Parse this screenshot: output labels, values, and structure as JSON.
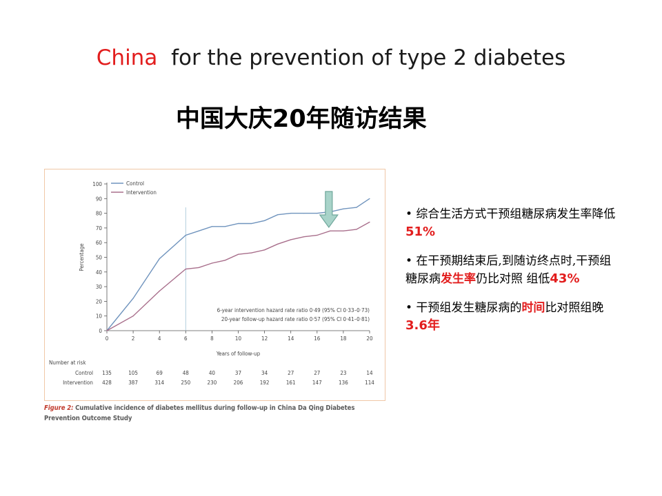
{
  "header": {
    "title_highlight": "China",
    "title_rest": "for the prevention of type 2 diabetes",
    "subtitle": "中国大庆20年随访结果"
  },
  "figure": {
    "caption_label": "Figure 2:",
    "caption_text": "Cumulative incidence of diabetes mellitus during follow-up in China Da Qing Diabetes Prevention Outcome Study"
  },
  "chart_data": {
    "type": "line",
    "ylabel": "Percentage",
    "xlabel": "Years of follow-up",
    "xlim": [
      0,
      20
    ],
    "ylim": [
      0,
      100
    ],
    "x_ticks": [
      0,
      2,
      4,
      6,
      8,
      10,
      12,
      14,
      16,
      18,
      20
    ],
    "y_ticks": [
      0,
      10,
      20,
      30,
      40,
      50,
      60,
      70,
      80,
      90,
      100
    ],
    "legend_position": "top-left",
    "series": [
      {
        "name": "Control",
        "color": "#6f93bd",
        "x": [
          0,
          2,
          4,
          6,
          7,
          8,
          9,
          10,
          11,
          12,
          13,
          14,
          15,
          16,
          17,
          18,
          19,
          20
        ],
        "values": [
          0,
          22,
          49,
          65,
          68,
          71,
          71,
          73,
          73,
          75,
          79,
          80,
          80,
          80,
          81,
          83,
          84,
          90
        ]
      },
      {
        "name": "Intervention",
        "color": "#a86e8b",
        "x": [
          0,
          2,
          4,
          6,
          7,
          8,
          9,
          10,
          11,
          12,
          13,
          14,
          15,
          16,
          17,
          18,
          19,
          20
        ],
        "values": [
          0,
          10,
          27,
          42,
          43,
          46,
          48,
          52,
          53,
          55,
          59,
          62,
          64,
          65,
          68,
          68,
          69,
          74
        ]
      }
    ],
    "annotations": [
      "6-year intervention hazard rate ratio 0·49 (95% CI 0·33–0·73)",
      "20-year follow-up hazard rate ratio 0·57 (95% CI 0·41–0·81)"
    ],
    "reference_line_x": 6,
    "arrow_marker_x": 17,
    "number_at_risk": {
      "label": "Number at risk",
      "rows": [
        {
          "name": "Control",
          "values": [
            135,
            105,
            69,
            48,
            40,
            37,
            34,
            27,
            27,
            23,
            14
          ]
        },
        {
          "name": "Intervention",
          "values": [
            428,
            387,
            314,
            250,
            230,
            206,
            192,
            161,
            147,
            136,
            114
          ]
        }
      ]
    }
  },
  "bullets": [
    {
      "prefix": "• 综合生活方式干预组糖尿病发生率降低",
      "highlight": "51%",
      "suffix": ""
    },
    {
      "prefix": "• 在干预期结束后,到随访终点时,干预组糖尿病",
      "highlight_mid": "发生率",
      "middle": "仍比对照 组低",
      "highlight": "43%",
      "suffix": ""
    },
    {
      "prefix": "• 干预组发生糖尿病的",
      "highlight_mid": "时间",
      "middle": "比对照组晚",
      "highlight": "3.6年",
      "suffix": ""
    }
  ]
}
